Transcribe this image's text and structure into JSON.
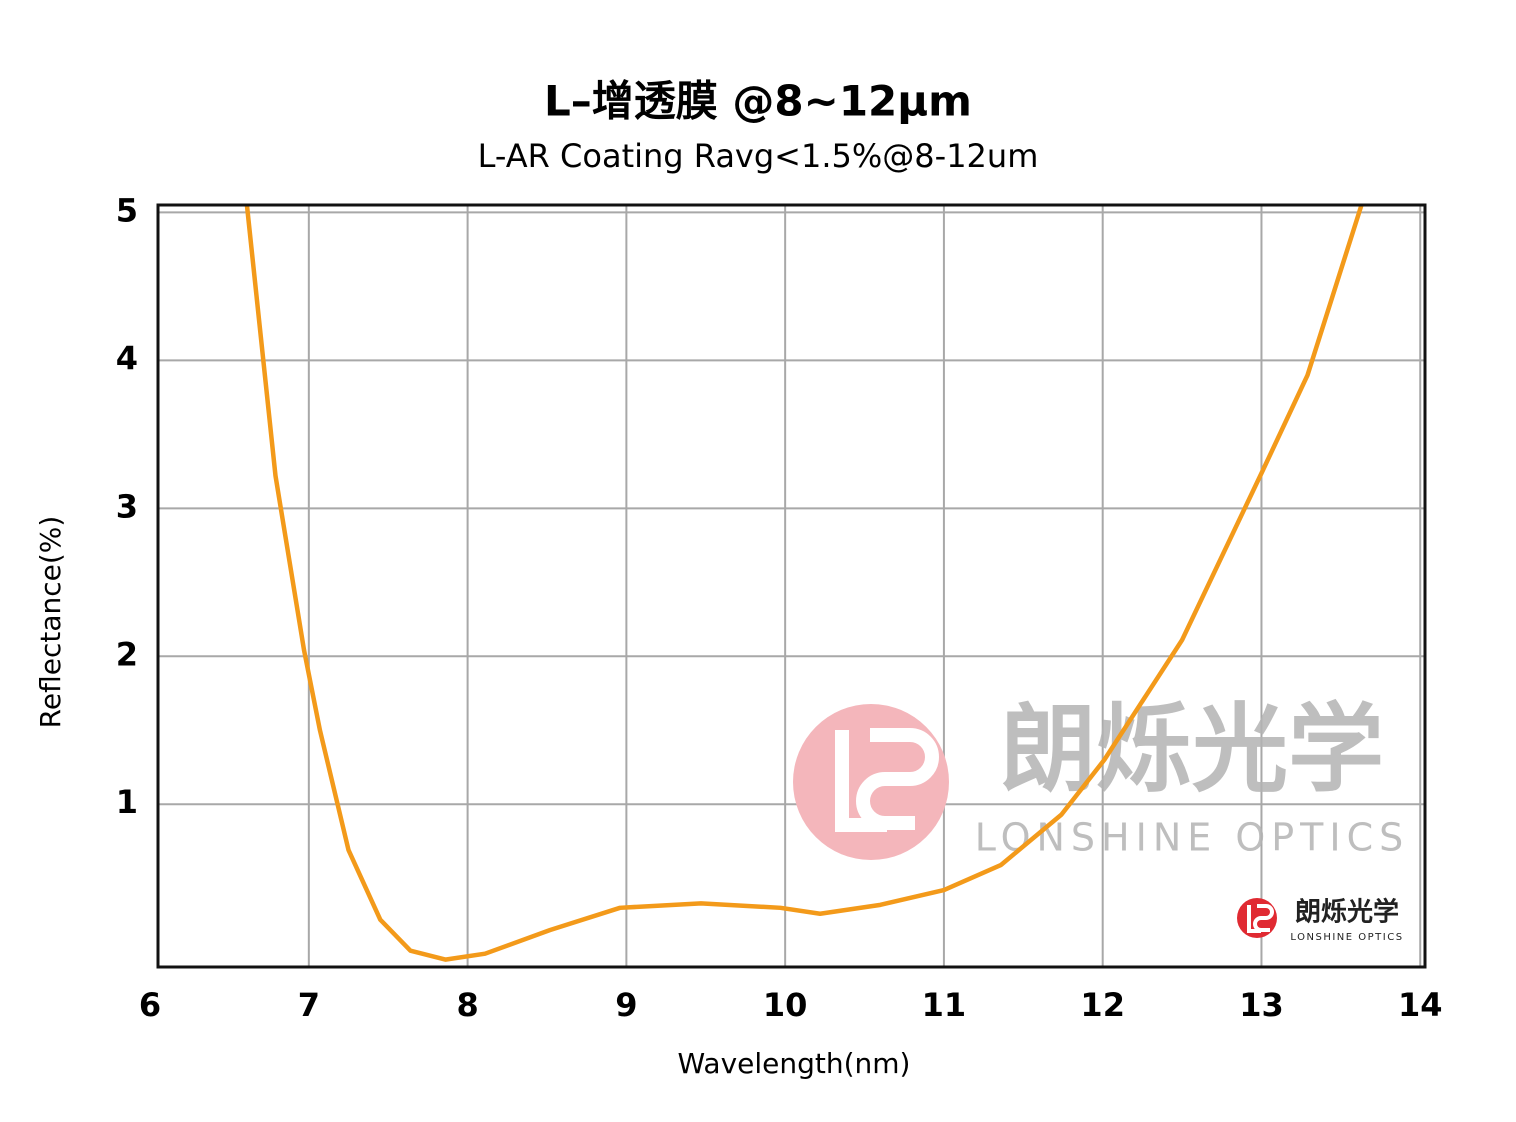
{
  "chart_data": {
    "type": "line",
    "title": "L–增透膜 @8~12μm",
    "subtitle": "L-AR Coating Ravg<1.5%@8-12um",
    "x_label": "Wavelength(nm)",
    "y_label": "Reflectance(%)",
    "xlim": [
      6.05,
      14.03
    ],
    "ylim": [
      -0.1,
      5.05
    ],
    "xticks": [
      6,
      7,
      8,
      9,
      10,
      11,
      12,
      13,
      14
    ],
    "yticks": [
      1,
      2,
      3,
      4,
      5
    ],
    "grid": true,
    "series": [
      {
        "name": "L-AR Coating",
        "color": "#f39a1a",
        "x": [
          6.61,
          6.79,
          6.97,
          7.07,
          7.25,
          7.45,
          7.64,
          7.86,
          8.11,
          8.52,
          8.96,
          9.47,
          9.97,
          10.22,
          10.6,
          11.0,
          11.36,
          11.74,
          12.01,
          12.5,
          13.01,
          13.29,
          13.63
        ],
        "values": [
          5.05,
          3.22,
          2.04,
          1.5,
          0.69,
          0.22,
          0.01,
          -0.05,
          -0.01,
          0.15,
          0.3,
          0.33,
          0.3,
          0.26,
          0.32,
          0.42,
          0.59,
          0.93,
          1.3,
          2.11,
          3.26,
          3.9,
          5.05
        ]
      }
    ],
    "watermark": {
      "name": "朗烁光学",
      "english": "LONSHINE OPTICS"
    }
  }
}
